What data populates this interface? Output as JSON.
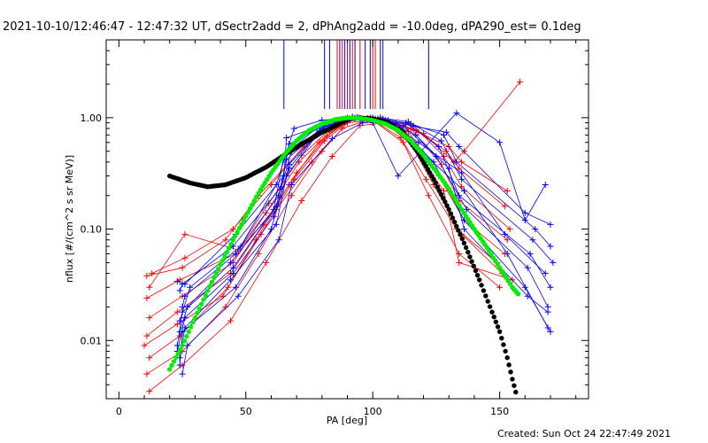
{
  "chart_data": {
    "type": "scatter",
    "title": "2021-10-10/12:46:47 - 12:47:32 UT, dSectr2add = 2, dPhAng2add = -10.0deg, dPA290_est=  0.1deg",
    "xlabel": "PA [deg]",
    "ylabel": "nflux [#/(cm^2 s sr MeV)]",
    "xlim": [
      -5,
      185
    ],
    "ylim": [
      0.003,
      5
    ],
    "y_scale": "log",
    "x_ticks": [
      0,
      50,
      100,
      150
    ],
    "x_tick_labels": [
      "0",
      "50",
      "100",
      "150"
    ],
    "y_ticks": [
      0.01,
      0.1,
      1.0
    ],
    "y_tick_labels": [
      "0.01",
      "0.10",
      "1.00"
    ],
    "grid": false,
    "colors": {
      "red": "#ff0000",
      "blue": "#0000ff",
      "green": "#00ee00",
      "black": "#000000",
      "navy": "#000080"
    },
    "vertical_markers": [
      {
        "x": 65,
        "color": "blue"
      },
      {
        "x": 81,
        "color": "blue"
      },
      {
        "x": 83,
        "color": "blue"
      },
      {
        "x": 86,
        "color": "red"
      },
      {
        "x": 87,
        "color": "blue"
      },
      {
        "x": 88,
        "color": "red"
      },
      {
        "x": 89,
        "color": "blue"
      },
      {
        "x": 90,
        "color": "red"
      },
      {
        "x": 91,
        "color": "blue"
      },
      {
        "x": 92,
        "color": "red"
      },
      {
        "x": 93,
        "color": "navy"
      },
      {
        "x": 95,
        "color": "red"
      },
      {
        "x": 97,
        "color": "blue"
      },
      {
        "x": 99,
        "color": "navy"
      },
      {
        "x": 100,
        "color": "red"
      },
      {
        "x": 101,
        "color": "red"
      },
      {
        "x": 103,
        "color": "navy"
      },
      {
        "x": 104,
        "color": "blue"
      },
      {
        "x": 122,
        "color": "navy"
      }
    ],
    "series": [
      {
        "color": "red",
        "x": [
          11,
          25,
          42,
          55,
          68,
          80,
          90,
          100,
          112,
          122,
          134,
          150
        ],
        "y": [
          0.005,
          0.008,
          0.02,
          0.06,
          0.2,
          0.5,
          0.9,
          0.95,
          0.6,
          0.2,
          0.06,
          0.03
        ]
      },
      {
        "color": "red",
        "x": [
          12,
          24,
          43,
          56,
          69,
          81,
          91,
          101,
          113,
          124,
          135,
          151
        ],
        "y": [
          0.007,
          0.011,
          0.03,
          0.09,
          0.28,
          0.62,
          0.95,
          0.98,
          0.7,
          0.25,
          0.09,
          0.04
        ]
      },
      {
        "color": "red",
        "x": [
          11,
          23,
          44,
          57,
          70,
          82,
          92,
          102,
          114,
          126,
          136,
          152
        ],
        "y": [
          0.011,
          0.018,
          0.04,
          0.11,
          0.32,
          0.68,
          1.0,
          0.96,
          0.75,
          0.3,
          0.12,
          0.06
        ]
      },
      {
        "color": "red",
        "x": [
          12,
          25,
          45,
          58,
          71,
          83,
          93,
          103,
          115,
          127,
          134,
          153
        ],
        "y": [
          0.016,
          0.025,
          0.05,
          0.14,
          0.4,
          0.75,
          0.98,
          1.0,
          0.8,
          0.38,
          0.18,
          0.08
        ]
      },
      {
        "color": "red",
        "x": [
          11,
          24,
          46,
          59,
          72,
          84,
          94,
          104,
          116,
          128,
          135,
          154
        ],
        "y": [
          0.024,
          0.035,
          0.06,
          0.17,
          0.46,
          0.82,
          1.02,
          0.98,
          0.85,
          0.45,
          0.24,
          0.1
        ]
      },
      {
        "color": "red",
        "x": [
          11,
          25,
          42,
          55,
          73,
          85,
          95,
          105,
          117,
          129,
          134,
          152
        ],
        "y": [
          0.038,
          0.045,
          0.08,
          0.2,
          0.55,
          0.86,
          1.0,
          0.95,
          0.78,
          0.5,
          0.35,
          0.16
        ]
      },
      {
        "color": "red",
        "x": [
          13,
          26,
          45,
          60,
          74,
          86,
          96,
          106,
          118,
          130,
          135,
          153
        ],
        "y": [
          0.04,
          0.055,
          0.1,
          0.25,
          0.6,
          0.9,
          0.97,
          0.92,
          0.74,
          0.55,
          0.4,
          0.22
        ]
      },
      {
        "color": "red",
        "x": [
          12,
          25,
          44,
          58,
          72,
          84,
          95,
          105,
          116,
          128,
          134,
          155
        ],
        "y": [
          0.0035,
          0.006,
          0.015,
          0.05,
          0.18,
          0.45,
          0.85,
          0.9,
          0.55,
          0.22,
          0.05,
          0.035
        ]
      },
      {
        "color": "red",
        "x": [
          10,
          23,
          41,
          54,
          67,
          79,
          89,
          99,
          111,
          121,
          133,
          149
        ],
        "y": [
          0.009,
          0.014,
          0.025,
          0.08,
          0.25,
          0.6,
          0.92,
          0.99,
          0.66,
          0.28,
          0.1,
          0.05
        ]
      },
      {
        "color": "red",
        "x": [
          12,
          26,
          47,
          62,
          76,
          88,
          98,
          108,
          120,
          132,
          136,
          158
        ],
        "y": [
          0.03,
          0.09,
          0.065,
          0.15,
          0.4,
          0.8,
          0.95,
          0.9,
          0.72,
          0.4,
          0.5,
          2.1
        ]
      },
      {
        "color": "blue",
        "x": [
          24,
          25,
          46,
          60,
          66,
          78,
          90,
          100,
          111,
          124,
          136,
          160,
          170
        ],
        "y": [
          0.006,
          0.012,
          0.03,
          0.1,
          0.3,
          0.7,
          0.95,
          1.0,
          0.8,
          0.4,
          0.12,
          0.03,
          0.012
        ]
      },
      {
        "color": "blue",
        "x": [
          23,
          26,
          45,
          61,
          67,
          79,
          91,
          101,
          112,
          125,
          137,
          161,
          169
        ],
        "y": [
          0.008,
          0.016,
          0.04,
          0.13,
          0.35,
          0.76,
          0.98,
          0.96,
          0.85,
          0.45,
          0.15,
          0.045,
          0.02
        ]
      },
      {
        "color": "blue",
        "x": [
          24,
          27,
          44,
          62,
          66,
          80,
          92,
          102,
          113,
          126,
          134,
          162,
          170
        ],
        "y": [
          0.012,
          0.02,
          0.05,
          0.16,
          0.42,
          0.8,
          1.02,
          0.98,
          0.9,
          0.55,
          0.2,
          0.06,
          0.03
        ]
      },
      {
        "color": "blue",
        "x": [
          25,
          26,
          46,
          63,
          68,
          81,
          93,
          103,
          114,
          127,
          135,
          163,
          171
        ],
        "y": [
          0.02,
          0.025,
          0.06,
          0.2,
          0.5,
          0.84,
          1.0,
          1.0,
          0.92,
          0.62,
          0.28,
          0.08,
          0.05
        ]
      },
      {
        "color": "blue",
        "x": [
          24,
          25,
          45,
          64,
          67,
          82,
          94,
          104,
          115,
          128,
          133,
          164,
          170
        ],
        "y": [
          0.028,
          0.032,
          0.07,
          0.24,
          0.58,
          0.88,
          1.0,
          0.97,
          0.88,
          0.7,
          0.4,
          0.1,
          0.07
        ]
      },
      {
        "color": "blue",
        "x": [
          23,
          26,
          46,
          65,
          66,
          83,
          95,
          105,
          116,
          129,
          134,
          160,
          170
        ],
        "y": [
          0.034,
          0.032,
          0.09,
          0.3,
          0.66,
          0.9,
          0.98,
          0.94,
          0.84,
          0.74,
          0.55,
          0.14,
          0.11
        ]
      },
      {
        "color": "blue",
        "x": [
          25,
          27,
          47,
          63,
          68,
          84,
          96,
          106,
          117,
          130,
          136,
          161,
          169
        ],
        "y": [
          0.005,
          0.009,
          0.025,
          0.08,
          0.25,
          0.65,
          0.9,
          0.95,
          0.7,
          0.35,
          0.1,
          0.025,
          0.018
        ]
      },
      {
        "color": "blue",
        "x": [
          24,
          28,
          48,
          62,
          69,
          80,
          90,
          100,
          110,
          133,
          150,
          160,
          168
        ],
        "y": [
          0.015,
          0.03,
          0.07,
          0.25,
          0.8,
          0.95,
          1.0,
          0.9,
          0.3,
          1.1,
          0.6,
          0.12,
          0.25
        ]
      },
      {
        "color": "blue",
        "x": [
          23,
          25,
          45,
          61,
          65,
          78,
          88,
          98,
          108,
          118,
          135,
          152,
          168
        ],
        "y": [
          0.009,
          0.018,
          0.045,
          0.15,
          0.45,
          0.82,
          0.96,
          0.99,
          0.86,
          0.6,
          0.32,
          0.09,
          0.04
        ]
      },
      {
        "color": "blue",
        "x": [
          24,
          26,
          44,
          62,
          67,
          79,
          89,
          99,
          109,
          119,
          136,
          153,
          169
        ],
        "y": [
          0.007,
          0.013,
          0.035,
          0.11,
          0.38,
          0.75,
          0.92,
          1.0,
          0.9,
          0.5,
          0.22,
          0.06,
          0.013
        ]
      }
    ],
    "curves": [
      {
        "color": "black",
        "x": [
          20,
          28,
          35,
          42,
          50,
          58,
          65,
          72,
          80,
          86,
          90,
          94,
          100,
          106,
          112,
          118,
          124,
          130,
          136,
          142,
          147,
          150,
          153,
          155,
          157
        ],
        "y": [
          0.3,
          0.26,
          0.24,
          0.25,
          0.29,
          0.36,
          0.46,
          0.58,
          0.74,
          0.86,
          0.97,
          1.0,
          0.98,
          0.9,
          0.74,
          0.48,
          0.28,
          0.15,
          0.075,
          0.035,
          0.018,
          0.012,
          0.007,
          0.0045,
          0.003
        ]
      },
      {
        "color": "green",
        "x": [
          20,
          25,
          30,
          35,
          40,
          45,
          50,
          55,
          60,
          65,
          70,
          75,
          80,
          85,
          90,
          95,
          100,
          105,
          110,
          115,
          120,
          125,
          130,
          135,
          140,
          145,
          150,
          155,
          158
        ],
        "y": [
          0.0055,
          0.009,
          0.016,
          0.028,
          0.048,
          0.08,
          0.13,
          0.21,
          0.32,
          0.46,
          0.62,
          0.77,
          0.88,
          0.96,
          1.0,
          0.99,
          0.95,
          0.88,
          0.77,
          0.62,
          0.46,
          0.33,
          0.23,
          0.15,
          0.1,
          0.068,
          0.045,
          0.03,
          0.025
        ]
      }
    ]
  },
  "footer": {
    "created": "Created: Sun Oct 24 22:47:49 2021"
  }
}
